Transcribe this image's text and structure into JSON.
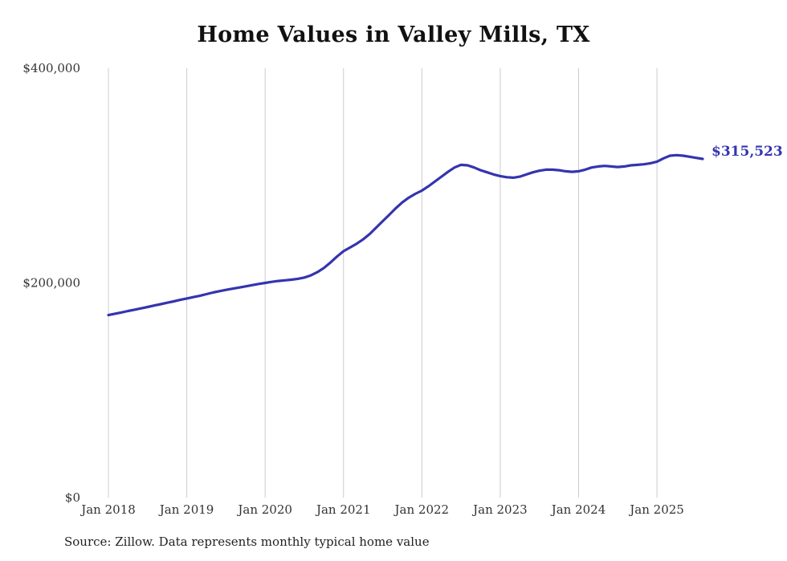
{
  "title": "Home Values in Valley Mills, TX",
  "end_label": "$315,523",
  "source": "Source: Zillow. Data represents monthly typical home value",
  "colors": {
    "line": "#3434b0",
    "grid": "#cccccc",
    "tick": "#333333",
    "title": "#111111"
  },
  "chart_data": {
    "type": "line",
    "title": "Home Values in Valley Mills, TX",
    "xlabel": "",
    "ylabel": "",
    "ylim": [
      0,
      400000
    ],
    "grid": "vertical-only",
    "legend": "none",
    "final_value": 315523,
    "final_value_label": "$315,523",
    "y_ticks": [
      {
        "label": "$0",
        "value": 0
      },
      {
        "label": "$200,000",
        "value": 200000
      },
      {
        "label": "$400,000",
        "value": 400000
      }
    ],
    "x_tick_labels": [
      "Jan 2018",
      "Jan 2019",
      "Jan 2020",
      "Jan 2021",
      "Jan 2022",
      "Jan 2023",
      "Jan 2024",
      "Jan 2025"
    ],
    "x_tick_month_indices": [
      0,
      12,
      24,
      36,
      48,
      60,
      72,
      84
    ],
    "x": [
      "2018-01",
      "2018-02",
      "2018-03",
      "2018-04",
      "2018-05",
      "2018-06",
      "2018-07",
      "2018-08",
      "2018-09",
      "2018-10",
      "2018-11",
      "2018-12",
      "2019-01",
      "2019-02",
      "2019-03",
      "2019-04",
      "2019-05",
      "2019-06",
      "2019-07",
      "2019-08",
      "2019-09",
      "2019-10",
      "2019-11",
      "2019-12",
      "2020-01",
      "2020-02",
      "2020-03",
      "2020-04",
      "2020-05",
      "2020-06",
      "2020-07",
      "2020-08",
      "2020-09",
      "2020-10",
      "2020-11",
      "2020-12",
      "2021-01",
      "2021-02",
      "2021-03",
      "2021-04",
      "2021-05",
      "2021-06",
      "2021-07",
      "2021-08",
      "2021-09",
      "2021-10",
      "2021-11",
      "2021-12",
      "2022-01",
      "2022-02",
      "2022-03",
      "2022-04",
      "2022-05",
      "2022-06",
      "2022-07",
      "2022-08",
      "2022-09",
      "2022-10",
      "2022-11",
      "2022-12",
      "2023-01",
      "2023-02",
      "2023-03",
      "2023-04",
      "2023-05",
      "2023-06",
      "2023-07",
      "2023-08",
      "2023-09",
      "2023-10",
      "2023-11",
      "2023-12",
      "2024-01",
      "2024-02",
      "2024-03",
      "2024-04",
      "2024-05",
      "2024-06",
      "2024-07",
      "2024-08",
      "2024-09",
      "2024-10",
      "2024-11",
      "2024-12",
      "2025-01",
      "2025-02",
      "2025-03",
      "2025-04",
      "2025-05",
      "2025-06",
      "2025-07",
      "2025-08"
    ],
    "values": [
      170000,
      171300,
      172500,
      173800,
      175000,
      176300,
      177600,
      178900,
      180200,
      181500,
      182800,
      184200,
      185500,
      186800,
      188000,
      189500,
      191000,
      192300,
      193500,
      194600,
      195700,
      196800,
      197900,
      199000,
      200000,
      201000,
      201800,
      202400,
      203000,
      203800,
      205000,
      207000,
      210000,
      214000,
      219000,
      224500,
      229500,
      233000,
      236500,
      240500,
      245500,
      251500,
      257500,
      263500,
      269500,
      275000,
      279500,
      283000,
      286000,
      290000,
      294500,
      299000,
      303500,
      307500,
      310000,
      309500,
      307500,
      305000,
      303000,
      301000,
      299500,
      298500,
      298000,
      299000,
      301000,
      303000,
      304500,
      305500,
      305500,
      305000,
      304000,
      303500,
      304000,
      305500,
      307500,
      308500,
      309000,
      308500,
      308000,
      308500,
      309500,
      310000,
      310500,
      311500,
      313000,
      316000,
      318500,
      319000,
      318500,
      317500,
      316500,
      315523
    ]
  }
}
